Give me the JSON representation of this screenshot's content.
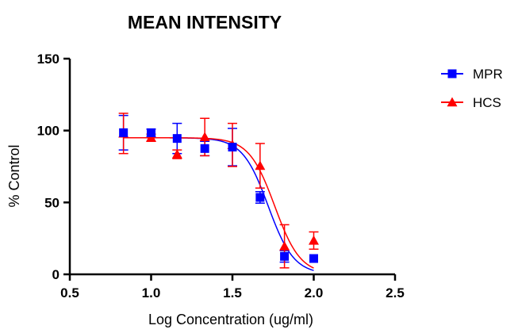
{
  "chart_data": {
    "type": "scatter",
    "title": "MEAN INTENSITY",
    "xlabel": "Log Concentration (ug/ml)",
    "ylabel": "% Control",
    "xlim": [
      0.5,
      2.5
    ],
    "ylim": [
      0,
      150
    ],
    "x_ticks": [
      0.5,
      1.0,
      1.5,
      2.0,
      2.5
    ],
    "x_tick_labels": [
      "0.5",
      "1.0",
      "1.5",
      "2.0",
      "2.5"
    ],
    "y_ticks": [
      0,
      50,
      100,
      150
    ],
    "y_tick_labels": [
      "0",
      "50",
      "100",
      "150"
    ],
    "grid": false,
    "legend_position": "top-right",
    "series": [
      {
        "name": "MPR",
        "color": "#0000ff",
        "marker": "square",
        "points": [
          {
            "x": 0.83,
            "y": 98.5,
            "err": 12
          },
          {
            "x": 1.0,
            "y": 98.5,
            "err": 2.5
          },
          {
            "x": 1.16,
            "y": 94.5,
            "err": 10.5
          },
          {
            "x": 1.33,
            "y": 87.5,
            "err": 5
          },
          {
            "x": 1.5,
            "y": 88.5,
            "err": 13
          },
          {
            "x": 1.67,
            "y": 53.5,
            "err": 4
          },
          {
            "x": 1.82,
            "y": 12.5,
            "err": 4
          },
          {
            "x": 2.0,
            "y": 11.0,
            "err": 0
          }
        ],
        "fit": {
          "top": 95,
          "bottom": 0,
          "logEC50": 1.72,
          "hill": -5.5
        }
      },
      {
        "name": "HCS",
        "color": "#ff0000",
        "marker": "triangle",
        "points": [
          {
            "x": 0.83,
            "y": 98.0,
            "err": 14
          },
          {
            "x": 1.0,
            "y": 95.0,
            "err": 2.5
          },
          {
            "x": 1.16,
            "y": 83.5,
            "err": 3
          },
          {
            "x": 1.33,
            "y": 95.5,
            "err": 13
          },
          {
            "x": 1.5,
            "y": 90.0,
            "err": 15
          },
          {
            "x": 1.67,
            "y": 75.5,
            "err": 15.5
          },
          {
            "x": 1.82,
            "y": 19.5,
            "err": 15
          },
          {
            "x": 2.0,
            "y": 23.5,
            "err": 6
          }
        ],
        "fit": {
          "top": 95,
          "bottom": 0,
          "logEC50": 1.76,
          "hill": -5.5
        }
      }
    ]
  }
}
